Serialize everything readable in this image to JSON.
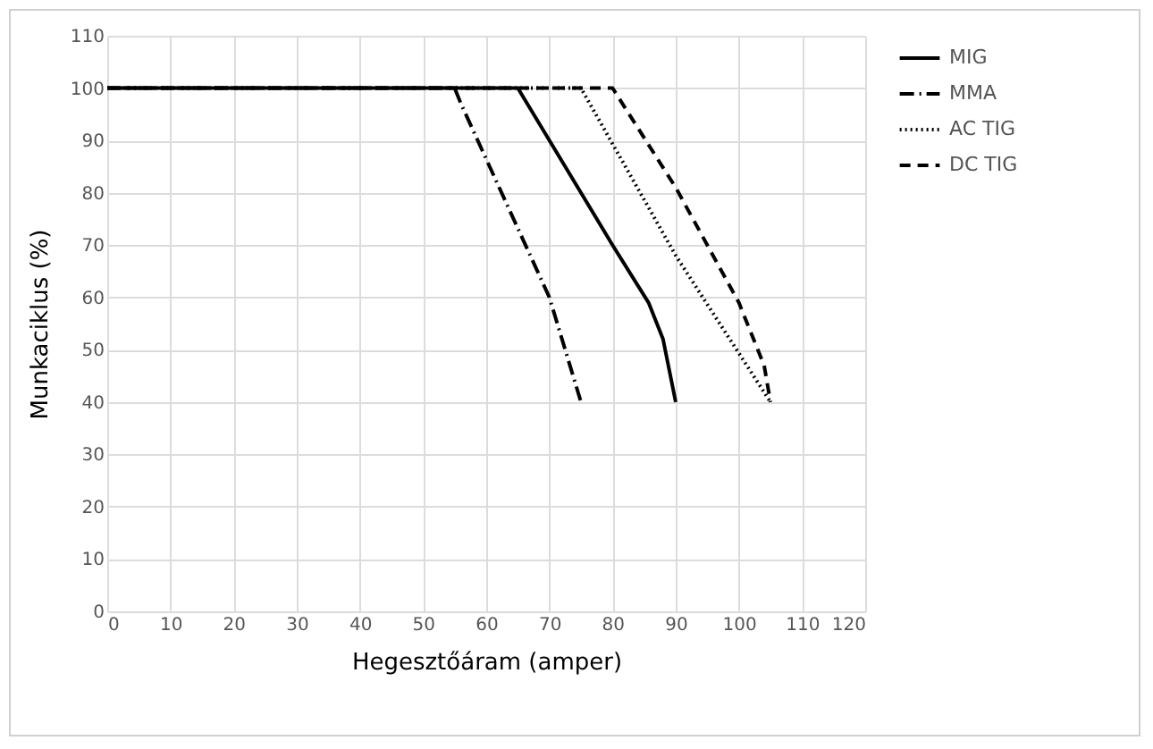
{
  "chart_data": {
    "type": "line",
    "xlabel": "Hegesztőáram (amper)",
    "ylabel": "Munkaciklus (%)",
    "xlim": [
      0,
      120
    ],
    "xticks": [
      0,
      10,
      20,
      30,
      40,
      50,
      60,
      70,
      80,
      90,
      100,
      110,
      120
    ],
    "ylim": [
      0,
      110
    ],
    "yticks": [
      0,
      10,
      20,
      30,
      40,
      50,
      60,
      70,
      80,
      90,
      100,
      110
    ],
    "grid": true,
    "legend": "right",
    "marker": "none",
    "series": [
      {
        "name": "MIG",
        "color": "#000000",
        "line_style": "solid",
        "x": [
          0,
          65,
          80,
          85.7,
          88,
          90
        ],
        "values": [
          100,
          100,
          70,
          59,
          52,
          40
        ]
      },
      {
        "name": "MMA",
        "color": "#000000",
        "line_style": "dashdot",
        "x": [
          0,
          55,
          56,
          70,
          75
        ],
        "values": [
          100,
          100,
          97,
          60,
          40
        ]
      },
      {
        "name": "AC TIG",
        "color": "#000000",
        "line_style": "dotted",
        "x": [
          0,
          75,
          90,
          105
        ],
        "values": [
          100,
          100,
          68,
          40
        ]
      },
      {
        "name": "DC TIG",
        "color": "#000000",
        "line_style": "dashed",
        "x": [
          0,
          80,
          90,
          100,
          104,
          105
        ],
        "values": [
          100,
          100,
          81,
          59,
          47,
          40
        ]
      }
    ]
  }
}
